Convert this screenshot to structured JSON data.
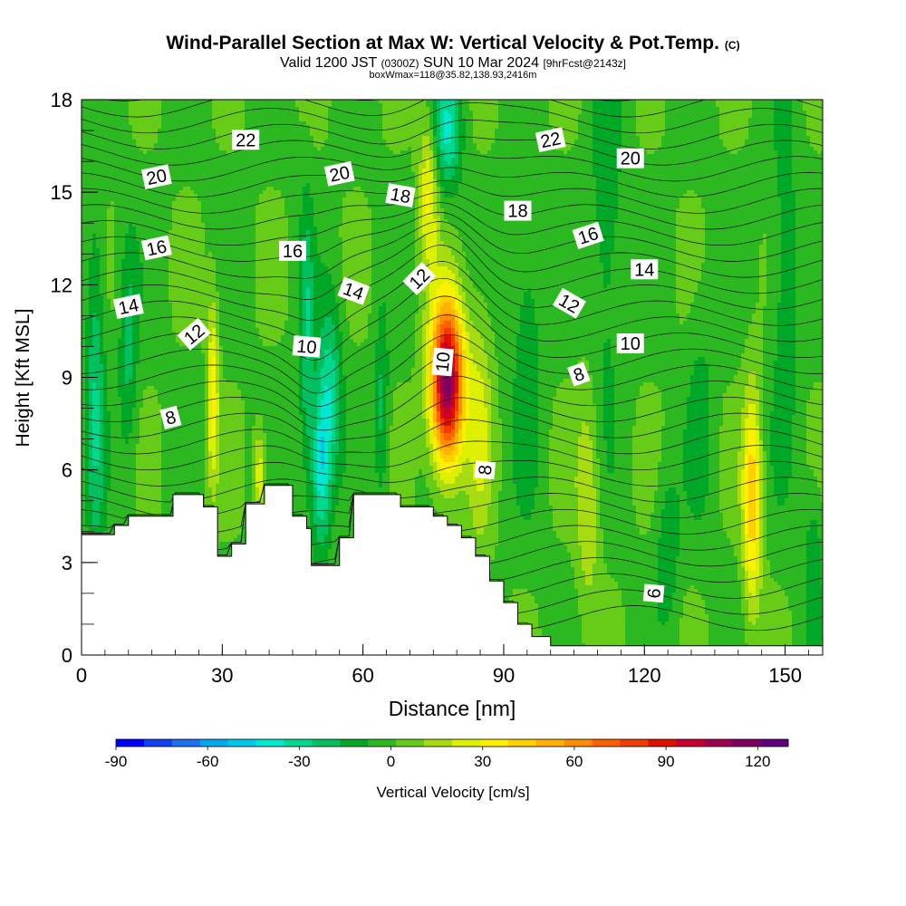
{
  "title": {
    "main": "Wind-Parallel Section at Max W: Vertical Velocity & Pot.Temp.",
    "copyright": "(C)",
    "valid_prefix": "Valid 1200 JST",
    "utc": "(0300Z)",
    "date": "SUN 10 Mar 2024",
    "forecast": "[9hrFcst@2143z]",
    "subtitle": "boxWmax=118@35.82,138.93,2416m"
  },
  "chart_data": {
    "type": "heatmap",
    "xlabel": "Distance [nm]",
    "ylabel": "Height [Kft MSL]",
    "xlim": [
      0,
      158
    ],
    "ylim": [
      0,
      18
    ],
    "x_ticks": [
      0,
      30,
      60,
      90,
      120,
      150
    ],
    "y_ticks": [
      0,
      3,
      6,
      9,
      12,
      15,
      18
    ],
    "colorbar": {
      "label": "Vertical Velocity [cm/s]",
      "range": [
        -90,
        130
      ],
      "tick_values": [
        -90,
        -60,
        -30,
        0,
        30,
        60,
        90,
        120
      ],
      "colors": [
        "#0000ff",
        "#1040f0",
        "#1e70f0",
        "#00a8f0",
        "#00c8e8",
        "#00e8d0",
        "#00d890",
        "#00c060",
        "#00a828",
        "#2cb820",
        "#66cc18",
        "#a8dc10",
        "#ddf000",
        "#fff000",
        "#ffd000",
        "#ffb000",
        "#ff8c00",
        "#ff6000",
        "#f03c00",
        "#e01000",
        "#c80030",
        "#a00050",
        "#800060",
        "#600080"
      ]
    },
    "terrain_kft": [
      [
        0,
        3.9
      ],
      [
        7,
        3.9
      ],
      [
        7,
        4.2
      ],
      [
        10,
        4.2
      ],
      [
        10,
        4.5
      ],
      [
        19.5,
        4.5
      ],
      [
        19.5,
        5.2
      ],
      [
        26,
        5.2
      ],
      [
        26,
        4.8
      ],
      [
        29,
        4.8
      ],
      [
        29,
        3.2
      ],
      [
        32,
        3.2
      ],
      [
        32,
        3.6
      ],
      [
        35,
        3.6
      ],
      [
        35,
        4.9
      ],
      [
        39,
        4.9
      ],
      [
        39,
        5.5
      ],
      [
        45,
        5.5
      ],
      [
        45,
        4.5
      ],
      [
        48,
        4.5
      ],
      [
        48,
        4.1
      ],
      [
        49,
        4.1
      ],
      [
        49,
        2.9
      ],
      [
        55,
        2.9
      ],
      [
        55,
        3.8
      ],
      [
        58,
        3.8
      ],
      [
        58,
        5.2
      ],
      [
        68,
        5.2
      ],
      [
        68,
        4.8
      ],
      [
        75,
        4.8
      ],
      [
        75,
        4.5
      ],
      [
        78,
        4.5
      ],
      [
        78,
        4.2
      ],
      [
        81,
        4.2
      ],
      [
        81,
        3.8
      ],
      [
        84,
        3.8
      ],
      [
        84,
        3.2
      ],
      [
        87,
        3.2
      ],
      [
        87,
        2.4
      ],
      [
        90,
        2.4
      ],
      [
        90,
        1.7
      ],
      [
        93,
        1.7
      ],
      [
        93,
        1.0
      ],
      [
        96,
        1.0
      ],
      [
        96,
        0.6
      ],
      [
        100,
        0.6
      ],
      [
        100,
        0.3
      ],
      [
        158,
        0.3
      ]
    ],
    "w_field": {
      "x": [
        0,
        4,
        8,
        12,
        16,
        20,
        24,
        28,
        32,
        36,
        40,
        44,
        48,
        52,
        56,
        60,
        64,
        68,
        72,
        76,
        80,
        84,
        88,
        92,
        96,
        100,
        104,
        108,
        112,
        116,
        120,
        124,
        128,
        132,
        136,
        140,
        144,
        148,
        152,
        156
      ],
      "min_cm_s": -40,
      "max_cm_s": 118,
      "cells": [
        [
          3,
          8.5,
          2.0,
          6.0,
          -25
        ],
        [
          10,
          10.0,
          2.0,
          3.5,
          -20
        ],
        [
          28,
          8.5,
          1.2,
          3.0,
          35
        ],
        [
          38,
          5.8,
          1.2,
          1.5,
          30
        ],
        [
          48,
          10.0,
          1.5,
          4.5,
          -25
        ],
        [
          51,
          6.0,
          2.0,
          2.6,
          -40
        ],
        [
          53,
          8.5,
          2.5,
          3.0,
          -30
        ],
        [
          64,
          8.0,
          1.5,
          3.0,
          -20
        ],
        [
          74,
          15.0,
          2.0,
          2.5,
          30
        ],
        [
          78,
          8.8,
          3.5,
          2.6,
          118
        ],
        [
          78,
          17.0,
          3.0,
          2.0,
          -35
        ],
        [
          85,
          7.5,
          2.5,
          4.0,
          20
        ],
        [
          95,
          10.0,
          3.0,
          5.0,
          -15
        ],
        [
          108,
          5.0,
          2.5,
          3.5,
          20
        ],
        [
          112,
          14.0,
          3.5,
          6.0,
          -15
        ],
        [
          125,
          3.5,
          2.5,
          2.5,
          -15
        ],
        [
          132,
          8.0,
          3.0,
          4.0,
          -10
        ],
        [
          143,
          5.0,
          2.0,
          3.5,
          45
        ],
        [
          150,
          12.0,
          3.0,
          6.0,
          -15
        ],
        [
          156,
          3.0,
          2.0,
          2.5,
          -15
        ]
      ]
    },
    "theta_labels": [
      {
        "text": "22",
        "x": 35,
        "y": 16.7,
        "rot": 0
      },
      {
        "text": "22",
        "x": 100,
        "y": 16.7,
        "rot": -12
      },
      {
        "text": "20",
        "x": 16,
        "y": 15.5,
        "rot": -12
      },
      {
        "text": "20",
        "x": 55,
        "y": 15.6,
        "rot": -12
      },
      {
        "text": "20",
        "x": 117,
        "y": 16.1,
        "rot": 0
      },
      {
        "text": "18",
        "x": 68,
        "y": 14.9,
        "rot": 10
      },
      {
        "text": "18",
        "x": 93,
        "y": 14.4,
        "rot": 0
      },
      {
        "text": "16",
        "x": 16,
        "y": 13.2,
        "rot": -12
      },
      {
        "text": "16",
        "x": 45,
        "y": 13.1,
        "rot": 0
      },
      {
        "text": "16",
        "x": 108,
        "y": 13.6,
        "rot": -18
      },
      {
        "text": "14",
        "x": 10,
        "y": 11.3,
        "rot": -12
      },
      {
        "text": "14",
        "x": 58,
        "y": 11.8,
        "rot": 20
      },
      {
        "text": "14",
        "x": 120,
        "y": 12.5,
        "rot": 0
      },
      {
        "text": "12",
        "x": 24,
        "y": 10.4,
        "rot": -40
      },
      {
        "text": "12",
        "x": 72,
        "y": 12.2,
        "rot": -45
      },
      {
        "text": "12",
        "x": 104,
        "y": 11.4,
        "rot": 30
      },
      {
        "text": "10",
        "x": 48,
        "y": 10.0,
        "rot": 5
      },
      {
        "text": "10",
        "x": 77,
        "y": 9.5,
        "rot": -85
      },
      {
        "text": "10",
        "x": 117,
        "y": 10.1,
        "rot": 0
      },
      {
        "text": "8",
        "x": 19,
        "y": 7.7,
        "rot": -15
      },
      {
        "text": "8",
        "x": 86,
        "y": 6.0,
        "rot": -85
      },
      {
        "text": "8",
        "x": 106,
        "y": 9.1,
        "rot": -20
      },
      {
        "text": "6",
        "x": 122,
        "y": 2.0,
        "rot": -85
      }
    ]
  }
}
